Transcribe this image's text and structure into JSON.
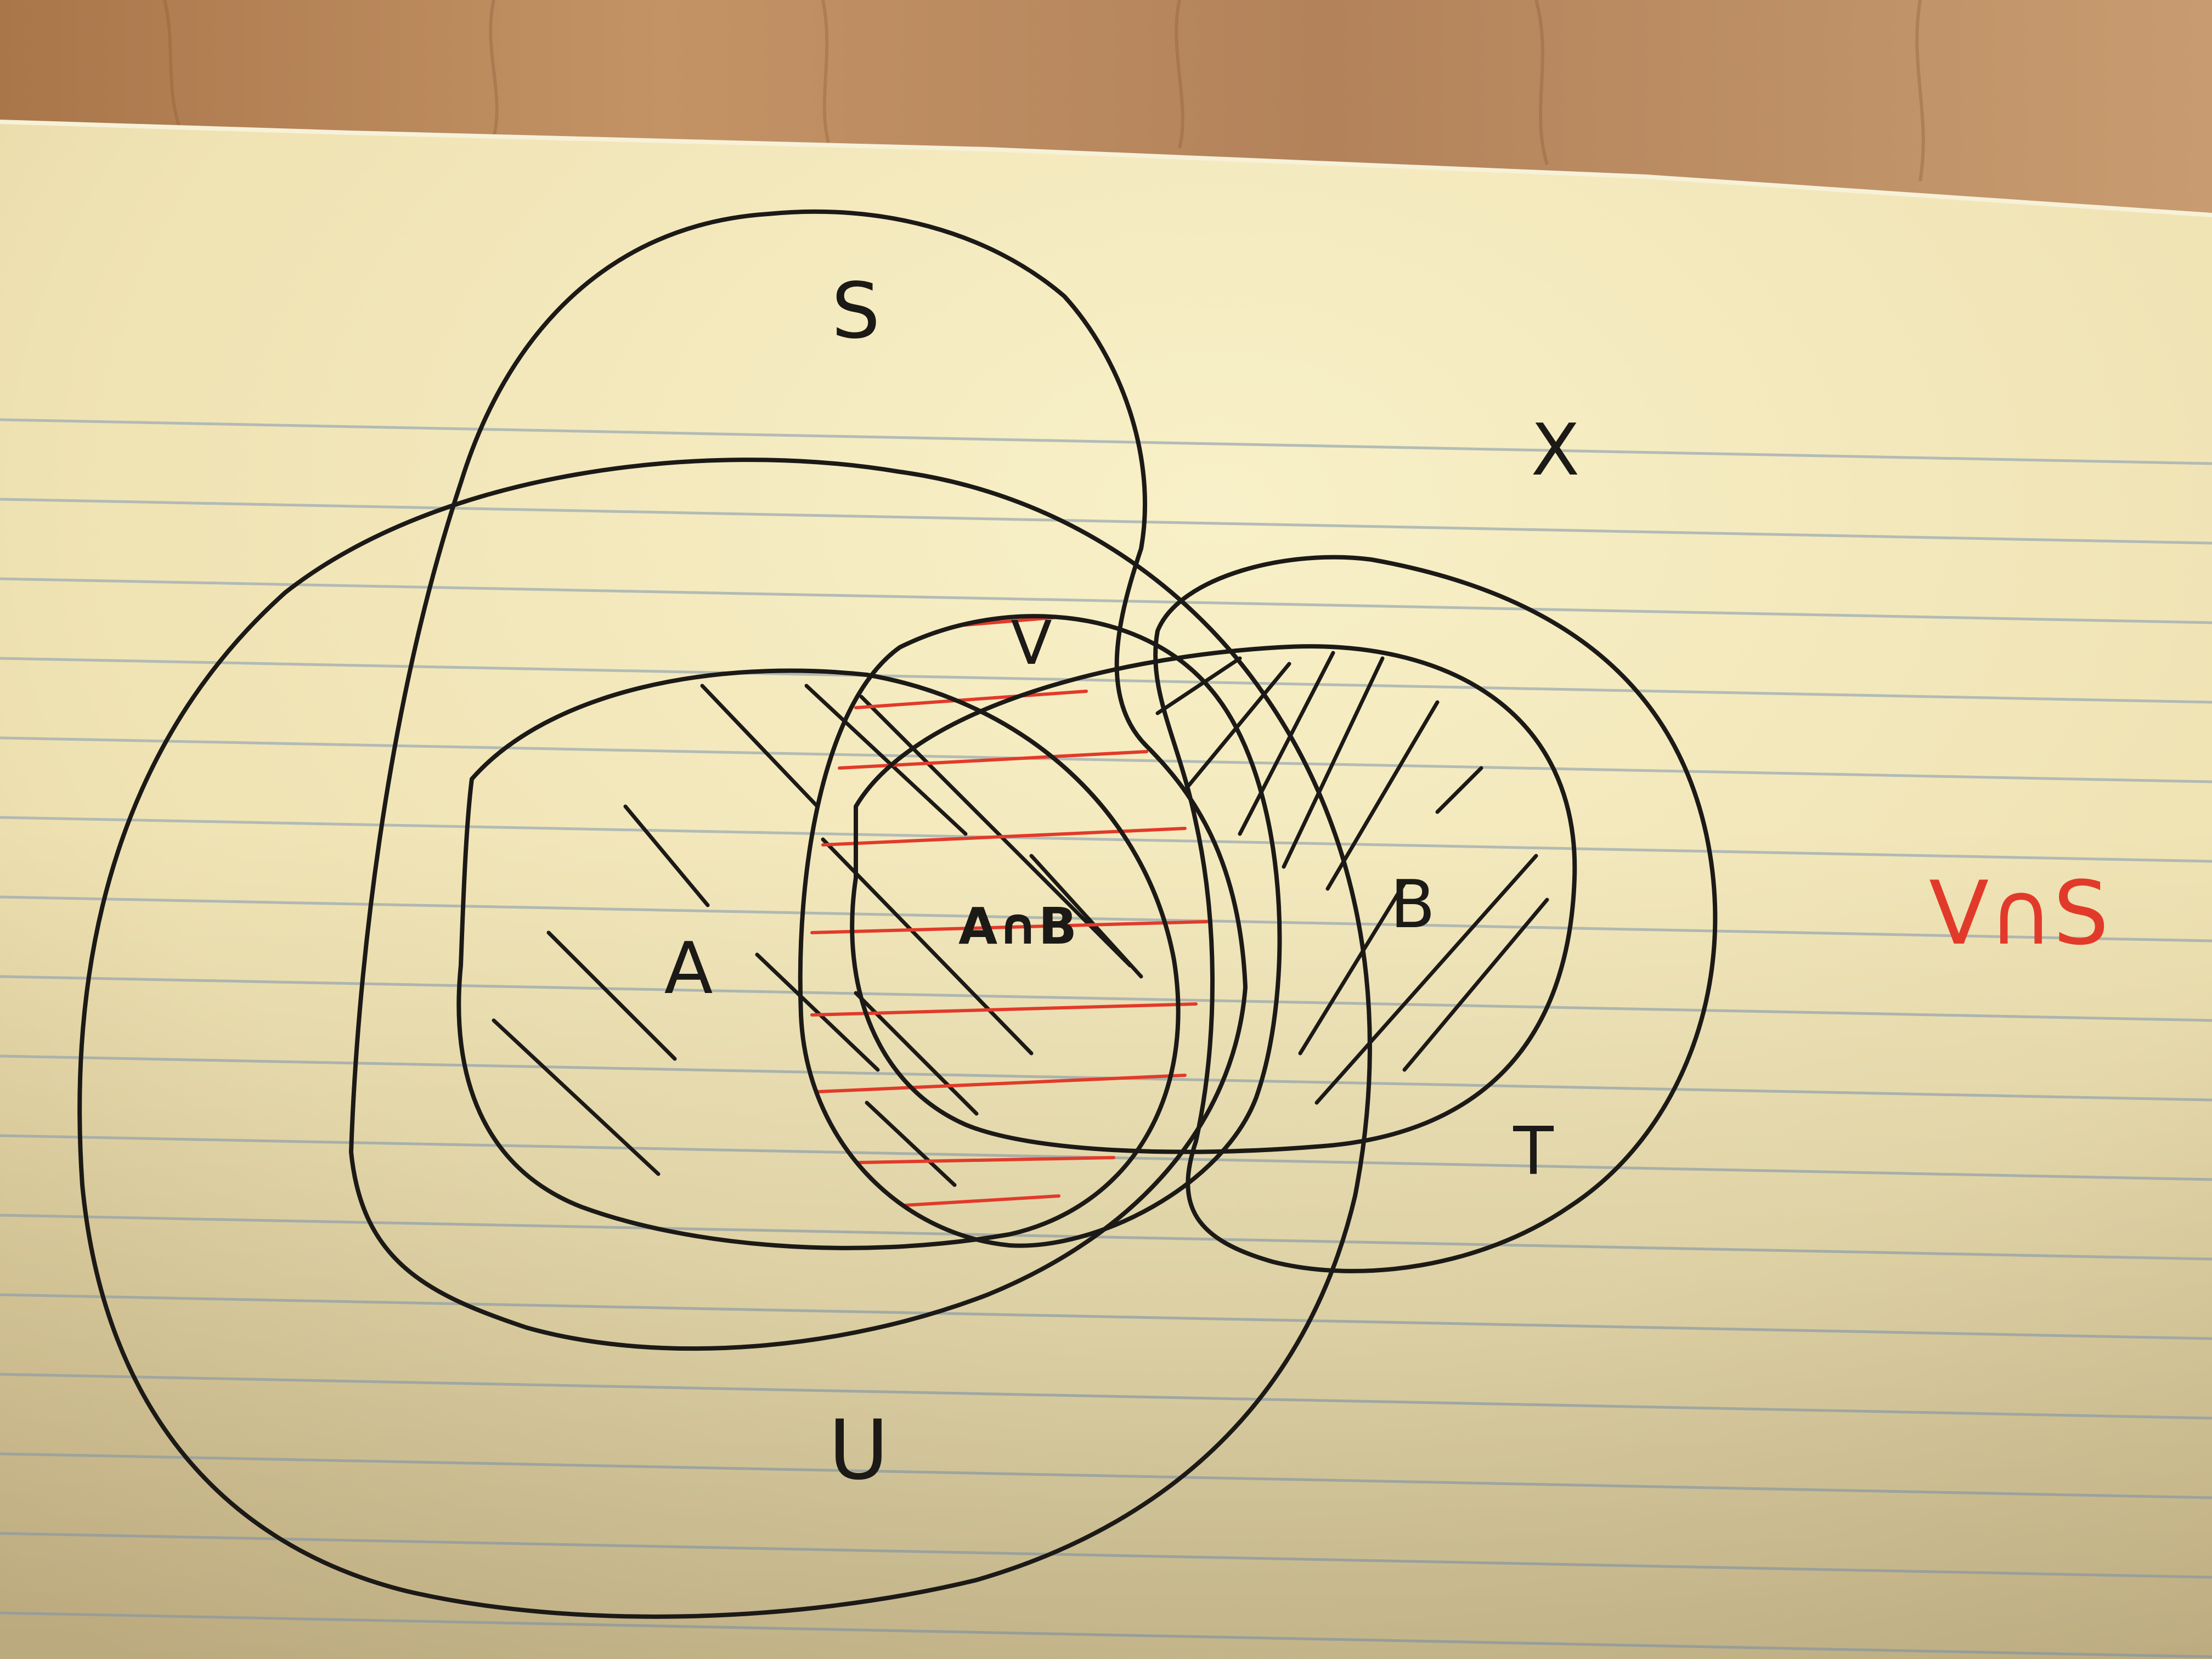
{
  "diagram": {
    "type": "venn",
    "sets": [
      {
        "id": "U",
        "label": "U"
      },
      {
        "id": "S",
        "label": "S"
      },
      {
        "id": "T",
        "label": "T"
      },
      {
        "id": "V",
        "label": "V"
      },
      {
        "id": "A",
        "label": "A"
      },
      {
        "id": "B",
        "label": "B"
      }
    ],
    "universe_label": "X",
    "intersection_label": "A∩B",
    "note": "V∩S",
    "colors": {
      "ink": "#1c1a17",
      "red_ink": "#e23a2a",
      "paper": "#f5ecc0",
      "ruling": "#a7b3b3",
      "wood": "#b98a5c"
    }
  }
}
